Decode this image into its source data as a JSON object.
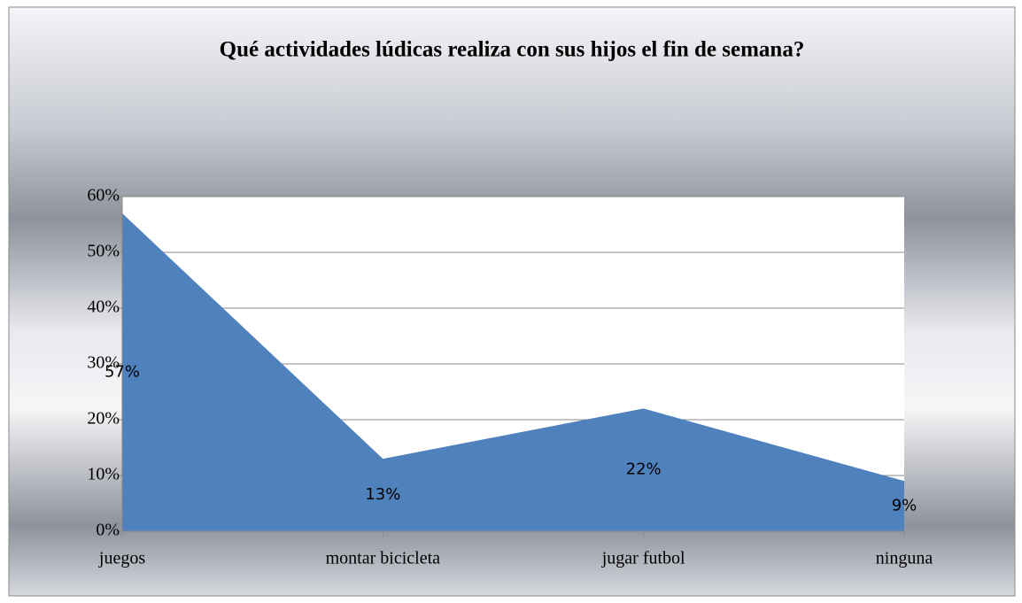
{
  "chart_data": {
    "type": "area",
    "title": "Qué actividades lúdicas realiza con sus hijos el fin de semana?",
    "categories": [
      "juegos",
      "montar bicicleta",
      "jugar futbol",
      "ninguna"
    ],
    "values": [
      57,
      13,
      22,
      9
    ],
    "value_labels": [
      "57%",
      "13%",
      "22%",
      "9%"
    ],
    "color": "#4f81bd",
    "ylim": [
      0,
      60
    ],
    "yticks": [
      {
        "value": 0,
        "label": "0%"
      },
      {
        "value": 10,
        "label": "10%"
      },
      {
        "value": 20,
        "label": "20%"
      },
      {
        "value": 30,
        "label": "30%"
      },
      {
        "value": 40,
        "label": "40%"
      },
      {
        "value": 50,
        "label": "50%"
      },
      {
        "value": 60,
        "label": "60%"
      }
    ],
    "grid": true
  }
}
